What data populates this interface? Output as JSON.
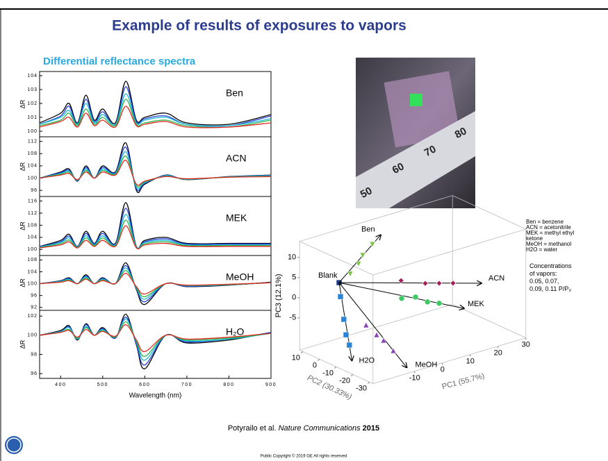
{
  "slide": {
    "title": "Example of results of exposures to vapors",
    "subtitle": "Differential reflectance spectra",
    "citation": {
      "authors": "Potyrailo et al.",
      "journal": "Nature Communications",
      "year": "2015"
    },
    "footer": "Public Copyright © 2019 GE All rights reserved",
    "photo": {
      "ruler_labels": [
        "50",
        "60",
        "70",
        "80"
      ]
    },
    "legend_notes": [
      "Ben = benzene",
      "ACN = acetonitrile",
      "MEK = methyl ethyl ketone",
      "MeOH = methanol",
      "H2O = water"
    ],
    "concentration_note": "Concentrations of vapors: 0.05, 0.07, 0.09, 0.11 P/P₀"
  },
  "chart_data": [
    {
      "type": "line",
      "label": "Ben",
      "ylabel": "ΔR",
      "x": [
        350,
        400,
        420,
        440,
        460,
        480,
        500,
        530,
        555,
        580,
        600,
        650,
        700,
        800,
        900
      ],
      "xlim": [
        350,
        900
      ],
      "ylim": [
        99.6,
        104.3
      ],
      "yticks": [
        100,
        101,
        102,
        103,
        104
      ],
      "series": [
        {
          "color": "#000000",
          "values": [
            100.6,
            101.3,
            102.0,
            100.6,
            102.6,
            100.8,
            101.6,
            100.6,
            103.6,
            100.8,
            101.0,
            101.3,
            100.6,
            100.5,
            101.2
          ]
        },
        {
          "color": "#1f3fd6",
          "values": [
            100.5,
            101.1,
            101.8,
            100.5,
            102.3,
            100.7,
            101.4,
            100.5,
            103.2,
            100.7,
            100.9,
            101.1,
            100.5,
            100.4,
            101.1
          ]
        },
        {
          "color": "#18b6d8",
          "values": [
            100.5,
            101.0,
            101.5,
            100.5,
            102.0,
            100.6,
            101.2,
            100.5,
            102.7,
            100.6,
            100.8,
            101.0,
            100.5,
            100.4,
            100.9
          ]
        },
        {
          "color": "#2bb34a",
          "values": [
            100.4,
            100.8,
            101.3,
            100.4,
            101.6,
            100.5,
            101.0,
            100.4,
            102.3,
            100.5,
            100.6,
            100.8,
            100.4,
            100.3,
            100.8
          ]
        },
        {
          "color": "#e0281e",
          "values": [
            100.3,
            100.7,
            101.0,
            100.3,
            101.3,
            100.4,
            100.8,
            100.3,
            101.8,
            100.4,
            100.5,
            100.7,
            100.3,
            100.3,
            100.6
          ]
        }
      ]
    },
    {
      "type": "line",
      "label": "ACN",
      "ylabel": "ΔR",
      "x": [
        350,
        400,
        420,
        440,
        460,
        480,
        500,
        530,
        555,
        580,
        600,
        650,
        700,
        800,
        900
      ],
      "xlim": [
        350,
        900
      ],
      "ylim": [
        94,
        113.5
      ],
      "yticks": [
        96,
        100,
        104,
        108,
        112
      ],
      "series": [
        {
          "color": "#000000",
          "values": [
            100,
            102,
            103,
            99,
            104,
            100,
            104,
            102,
            111.5,
            96,
            98,
            101,
            99.5,
            100.5,
            101
          ]
        },
        {
          "color": "#1f3fd6",
          "values": [
            100,
            101.8,
            102.6,
            99.1,
            103.5,
            100,
            103.5,
            101.8,
            110.1,
            96.5,
            98.3,
            100.9,
            99.6,
            100.4,
            100.9
          ]
        },
        {
          "color": "#18b6d8",
          "values": [
            100,
            101.5,
            102.3,
            99.3,
            103,
            100,
            103,
            101.5,
            108.6,
            97,
            98.5,
            100.8,
            99.6,
            100.4,
            100.8
          ]
        },
        {
          "color": "#2bb34a",
          "values": [
            100,
            101.3,
            101.9,
            99.4,
            102.5,
            100,
            102.5,
            101.3,
            107.2,
            97.5,
            98.8,
            100.6,
            99.7,
            100.3,
            100.6
          ]
        },
        {
          "color": "#e0281e",
          "values": [
            100,
            101,
            101.5,
            99.5,
            102,
            100,
            102,
            101,
            105.8,
            98,
            99,
            100.5,
            99.8,
            100.3,
            100.5
          ]
        }
      ]
    },
    {
      "type": "line",
      "label": "MEK",
      "ylabel": "ΔR",
      "x": [
        350,
        400,
        420,
        440,
        460,
        480,
        500,
        530,
        555,
        580,
        600,
        650,
        700,
        800,
        900
      ],
      "xlim": [
        350,
        900
      ],
      "ylim": [
        98,
        117.5
      ],
      "yticks": [
        100,
        104,
        108,
        112,
        116
      ],
      "series": [
        {
          "color": "#000000",
          "values": [
            101,
            103,
            105,
            101,
            106,
            102,
            106,
            102,
            115.5,
            101,
            103,
            104,
            102,
            102,
            102
          ]
        },
        {
          "color": "#1f3fd6",
          "values": [
            100.9,
            102.6,
            104.4,
            100.9,
            105.3,
            101.8,
            105.3,
            101.8,
            113.6,
            100.9,
            102.6,
            103.5,
            101.8,
            101.8,
            101.8
          ]
        },
        {
          "color": "#18b6d8",
          "values": [
            100.8,
            102.3,
            103.8,
            100.8,
            104.5,
            101.5,
            104.5,
            101.5,
            111.6,
            100.8,
            102.3,
            103,
            101.5,
            101.5,
            101.5
          ]
        },
        {
          "color": "#2bb34a",
          "values": [
            100.6,
            101.9,
            103.1,
            100.6,
            103.8,
            101.3,
            103.8,
            101.3,
            109.7,
            100.6,
            101.9,
            102.5,
            101.3,
            101.3,
            101.3
          ]
        },
        {
          "color": "#e0281e",
          "values": [
            100.5,
            101.5,
            102.5,
            100.5,
            103,
            101,
            103,
            101,
            107.8,
            100.5,
            101.5,
            102,
            101,
            101,
            101
          ]
        }
      ]
    },
    {
      "type": "line",
      "label": "MeOH",
      "ylabel": "ΔR",
      "x": [
        350,
        400,
        420,
        440,
        460,
        480,
        500,
        530,
        555,
        580,
        600,
        650,
        700,
        800,
        900
      ],
      "xlim": [
        350,
        900
      ],
      "ylim": [
        91,
        109.5
      ],
      "yticks": [
        92,
        96,
        100,
        104,
        108
      ],
      "series": [
        {
          "color": "#000000",
          "values": [
            100,
            101,
            102,
            100,
            103,
            100,
            102,
            100,
            107,
            98,
            93,
            100,
            99,
            99.5,
            100.5
          ]
        },
        {
          "color": "#1f3fd6",
          "values": [
            100,
            100.9,
            101.8,
            100,
            102.6,
            100,
            101.8,
            100,
            106.1,
            98.3,
            93.9,
            100,
            99.1,
            99.6,
            100.4
          ]
        },
        {
          "color": "#18b6d8",
          "values": [
            100,
            100.8,
            101.5,
            100,
            102.3,
            100,
            101.5,
            100,
            105.3,
            98.5,
            94.8,
            100,
            99.3,
            99.6,
            100.4
          ]
        },
        {
          "color": "#2bb34a",
          "values": [
            100,
            100.6,
            101.3,
            100,
            101.9,
            100,
            101.3,
            100,
            104.4,
            98.8,
            95.6,
            100,
            99.4,
            99.7,
            100.3
          ]
        },
        {
          "color": "#e0281e",
          "values": [
            100,
            100.5,
            101,
            100,
            101.5,
            100,
            101,
            100,
            103.5,
            99,
            96.5,
            100,
            99.5,
            99.8,
            100.3
          ]
        }
      ]
    },
    {
      "type": "line",
      "label": "H₂O",
      "ylabel": "ΔR",
      "xlabel": "Wavelength (nm)",
      "x": [
        350,
        400,
        420,
        440,
        460,
        480,
        500,
        530,
        555,
        580,
        600,
        650,
        700,
        800,
        900
      ],
      "xlim": [
        350,
        900
      ],
      "xticks": [
        400,
        500,
        600,
        700,
        800,
        900
      ],
      "ylim": [
        95.5,
        102.6
      ],
      "yticks": [
        96,
        98,
        100,
        102
      ],
      "series": [
        {
          "color": "#000000",
          "values": [
            100,
            100.5,
            101,
            99.5,
            101.2,
            100,
            100.8,
            99.7,
            102.2,
            99,
            96.5,
            100,
            99.2,
            99.5,
            100.3
          ]
        },
        {
          "color": "#1f3fd6",
          "values": [
            100,
            100.4,
            100.9,
            99.6,
            101.1,
            100,
            100.7,
            99.7,
            101.9,
            99.1,
            96.9,
            100,
            99.3,
            99.6,
            100.3
          ]
        },
        {
          "color": "#18b6d8",
          "values": [
            100,
            100.4,
            100.8,
            99.6,
            100.9,
            100,
            100.6,
            99.8,
            101.7,
            99.3,
            97.4,
            100,
            99.4,
            99.6,
            100.2
          ]
        },
        {
          "color": "#2bb34a",
          "values": [
            100,
            100.3,
            100.6,
            99.7,
            100.8,
            100,
            100.5,
            99.8,
            101.4,
            99.4,
            97.8,
            100,
            99.5,
            99.7,
            100.2
          ]
        },
        {
          "color": "#e0281e",
          "values": [
            100,
            100.3,
            100.5,
            99.8,
            100.6,
            100,
            100.4,
            99.9,
            101.1,
            99.5,
            98.3,
            100,
            99.6,
            99.8,
            100.2
          ]
        }
      ]
    },
    {
      "type": "scatter3d",
      "xlabel": "PC1 (55.7%)",
      "ylabel": "PC2 (30.33%)",
      "zlabel": "PC3 (12.1%)",
      "xlim": [
        -25,
        30
      ],
      "ylim": [
        -32,
        12
      ],
      "zlim": [
        -13,
        14
      ],
      "xticks": [
        -10,
        0,
        10,
        20,
        30
      ],
      "yticks": [
        10,
        0,
        -10,
        -20,
        -30
      ],
      "zticks": [
        10,
        5,
        0,
        -5
      ],
      "series": [
        {
          "name": "Blank",
          "color": "#1a3a8a",
          "x": [
            -15
          ],
          "y": [
            5
          ],
          "z": [
            3
          ]
        },
        {
          "name": "Ben",
          "color": "#7fc24a",
          "x": [
            -11,
            -8,
            -6.5,
            -3
          ],
          "y": [
            5,
            5,
            5,
            5
          ],
          "z": [
            4.3,
            6.2,
            8,
            10
          ]
        },
        {
          "name": "ACN",
          "color": "#a3205c",
          "x": [
            7.3,
            16,
            21,
            26
          ],
          "y": [
            5,
            5,
            5,
            5
          ],
          "z": [
            -1.1,
            -3.6,
            -4.6,
            -5.6
          ]
        },
        {
          "name": "MEK",
          "color": "#3cc862",
          "x": [
            4.5,
            9.5,
            13.8,
            18
          ],
          "y": [
            0,
            0,
            0,
            0
          ],
          "z": [
            -4,
            -4.7,
            -6.8,
            -8
          ]
        },
        {
          "name": "MeOH",
          "color": "#8a45b8",
          "x": [
            -14.3,
            -10.5,
            -8,
            -4.5
          ],
          "y": [
            -10,
            -10,
            -10,
            -10
          ],
          "z": [
            -4.8,
            -8,
            -9.9,
            -13.2
          ]
        },
        {
          "name": "H2O",
          "color": "#2a84d8",
          "x": [
            -17.5,
            -16.3,
            -15.5,
            -14.3
          ],
          "y": [
            0,
            0,
            0,
            0
          ],
          "z": [
            1,
            -4.9,
            -8.9,
            -11.7
          ]
        }
      ]
    }
  ]
}
